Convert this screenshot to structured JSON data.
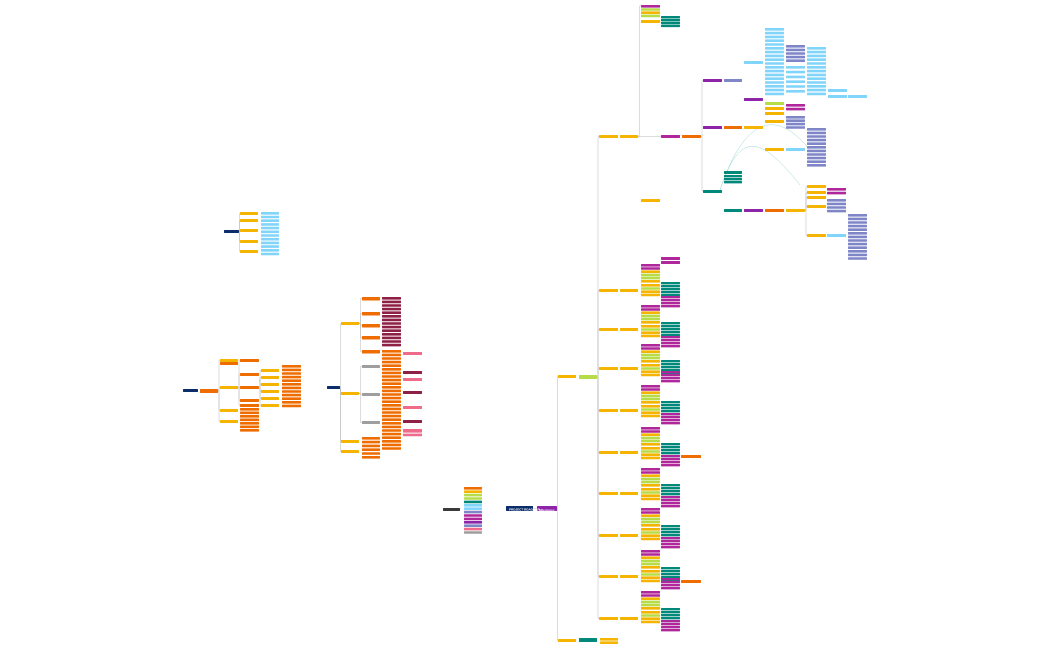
{
  "root_labels": {
    "main_root": "PROJECT ROADMAP",
    "main_branch": "Milestones"
  },
  "palette": {
    "navy": "#0b2d6b",
    "purple": "#8e24aa",
    "orange": "#ef6c00",
    "yellow": "#f4b400",
    "cyan": "#81d4fa",
    "teal": "#00897b",
    "magenta": "#b0279c",
    "lavender": "#7e86c8",
    "lime": "#b6dd48",
    "grey": "#9e9e9e",
    "pink": "#ee6b8a",
    "maroon": "#8e1f45",
    "dark": "#3a3a3a",
    "line": "#b8b8b8"
  }
}
